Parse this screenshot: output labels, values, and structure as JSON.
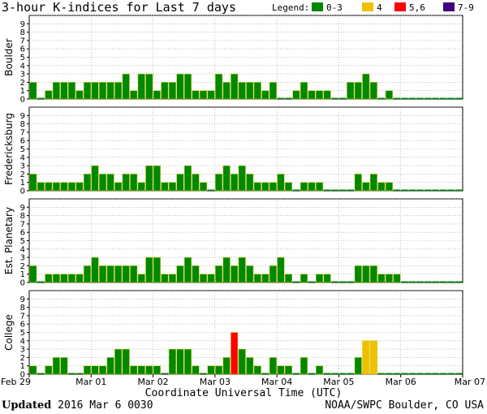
{
  "title": "3-hour K-indices for Last 7 days",
  "legend": {
    "label": "Legend:",
    "items": [
      {
        "label": "0-3",
        "color": "#008800"
      },
      {
        "label": "4",
        "color": "#f0c000"
      },
      {
        "label": "5,6",
        "color": "#ff0000"
      },
      {
        "label": "7-9",
        "color": "#400080"
      }
    ]
  },
  "footer": {
    "updated_label": "Updated",
    "updated_value": "2016 Mar  6 0030",
    "source": "NOAA/SWPC Boulder, CO USA"
  },
  "chart_data": {
    "type": "bar",
    "xlabel": "Coordinate Universal Time (UTC)",
    "x_ticks": [
      "Feb 29",
      "Mar 01",
      "Mar 02",
      "Mar 03",
      "Mar 04",
      "Mar 05",
      "Mar 06",
      "Mar 07"
    ],
    "y_ticks": [
      "0",
      "1",
      "2",
      "3",
      "4",
      "5",
      "6",
      "7",
      "8",
      "9"
    ],
    "ylim": [
      0,
      9
    ],
    "grid": true,
    "panels": [
      {
        "name": "Boulder",
        "values": [
          2,
          0,
          1,
          2,
          2,
          2,
          1,
          2,
          2,
          2,
          2,
          2,
          3,
          1,
          3,
          3,
          1,
          2,
          2,
          3,
          3,
          1,
          1,
          1,
          3,
          2,
          3,
          2,
          2,
          2,
          1,
          2,
          0,
          0,
          1,
          2,
          1,
          1,
          1,
          0,
          0,
          2,
          2,
          3,
          2,
          0,
          1,
          0,
          0,
          0,
          0,
          0,
          0,
          0,
          0,
          0
        ]
      },
      {
        "name": "Fredericksburg",
        "values": [
          2,
          1,
          1,
          1,
          1,
          1,
          1,
          2,
          3,
          2,
          2,
          1,
          2,
          2,
          1,
          3,
          3,
          1,
          1,
          2,
          3,
          2,
          1,
          0,
          2,
          3,
          2,
          3,
          2,
          1,
          1,
          1,
          2,
          1,
          0,
          1,
          1,
          1,
          0,
          0,
          0,
          0,
          2,
          1,
          2,
          1,
          1,
          0,
          0,
          0,
          0,
          0,
          0,
          0,
          0,
          0
        ]
      },
      {
        "name": "Est. Planetary",
        "values": [
          2,
          0,
          1,
          1,
          1,
          1,
          1,
          2,
          3,
          2,
          2,
          2,
          2,
          2,
          1,
          3,
          3,
          1,
          1,
          2,
          3,
          2,
          1,
          1,
          2,
          3,
          2,
          3,
          2,
          1,
          1,
          2,
          3,
          1,
          0,
          1,
          0,
          1,
          1,
          0,
          0,
          0,
          2,
          2,
          2,
          1,
          1,
          1,
          0,
          0,
          0,
          0,
          0,
          0,
          0,
          0
        ]
      },
      {
        "name": "College",
        "values": [
          1,
          0,
          1,
          2,
          2,
          0,
          0,
          1,
          1,
          1,
          2,
          3,
          3,
          1,
          1,
          1,
          1,
          0,
          3,
          3,
          3,
          1,
          0,
          1,
          1,
          2,
          5,
          3,
          2,
          1,
          0,
          2,
          1,
          1,
          0,
          2,
          0,
          1,
          0,
          0,
          0,
          0,
          2,
          4,
          4,
          0,
          0,
          0,
          0,
          0,
          0,
          0,
          0,
          0,
          0,
          0
        ]
      }
    ]
  }
}
